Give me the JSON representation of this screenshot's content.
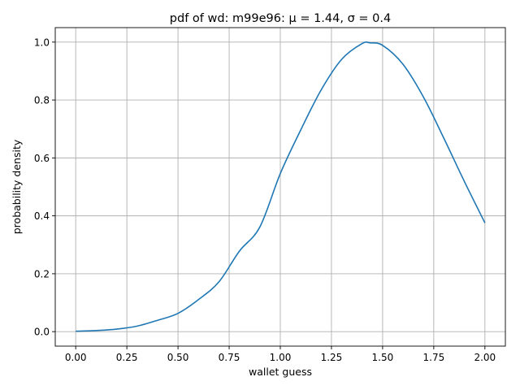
{
  "chart_data": {
    "type": "line",
    "title": "pdf of wd: m99e96: μ = 1.44, σ = 0.4",
    "xlabel": "wallet guess",
    "ylabel": "probability density",
    "xlim": [
      -0.1,
      2.1
    ],
    "ylim": [
      -0.05,
      1.05
    ],
    "x_ticks": [
      0.0,
      0.25,
      0.5,
      0.75,
      1.0,
      1.25,
      1.5,
      1.75,
      2.0
    ],
    "x_tick_labels": [
      "0.00",
      "0.25",
      "0.50",
      "0.75",
      "1.00",
      "1.25",
      "1.50",
      "1.75",
      "2.00"
    ],
    "y_ticks": [
      0.0,
      0.2,
      0.4,
      0.6,
      0.8,
      1.0
    ],
    "y_tick_labels": [
      "0.0",
      "0.2",
      "0.4",
      "0.6",
      "0.8",
      "1.0"
    ],
    "grid": true,
    "line_color": "#1f77b4",
    "series": [
      {
        "x": [
          0.0,
          0.1,
          0.2,
          0.3,
          0.4,
          0.5,
          0.6,
          0.7,
          0.8,
          0.9,
          1.0,
          1.1,
          1.2,
          1.3,
          1.4,
          1.44,
          1.5,
          1.6,
          1.7,
          1.8,
          1.9,
          2.0
        ],
        "y": [
          0.0015,
          0.0037,
          0.0087,
          0.0191,
          0.0392,
          0.0632,
          0.1108,
          0.1719,
          0.278,
          0.3614,
          0.5461,
          0.6968,
          0.8353,
          0.9406,
          0.995,
          0.9972,
          0.9888,
          0.9231,
          0.8097,
          0.667,
          0.5181,
          0.3757
        ]
      }
    ]
  }
}
